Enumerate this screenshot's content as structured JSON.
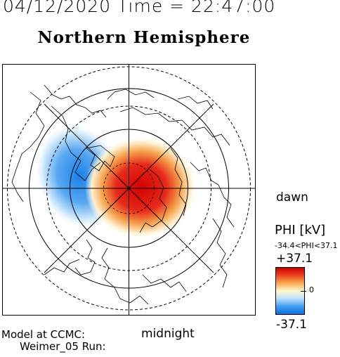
{
  "header": {
    "datetime": "04/12/2020 Time = 22:47:00",
    "title": "Northern Hemisphere"
  },
  "map": {
    "labels": {
      "dawn": "dawn",
      "midnight": "midnight"
    },
    "colors": {
      "positive": "#d40000",
      "negative": "#1a7fe8",
      "zero": "#ffffff"
    }
  },
  "colorbar": {
    "title": "PHI [kV]",
    "range_text": "-34.4<PHI<37.1",
    "max_label": "+37.1",
    "zero_label": "0",
    "min_label": "-37.1"
  },
  "footer": {
    "model_label": "Model at CCMC:",
    "run_label": "Weimer_05 Run:"
  }
}
